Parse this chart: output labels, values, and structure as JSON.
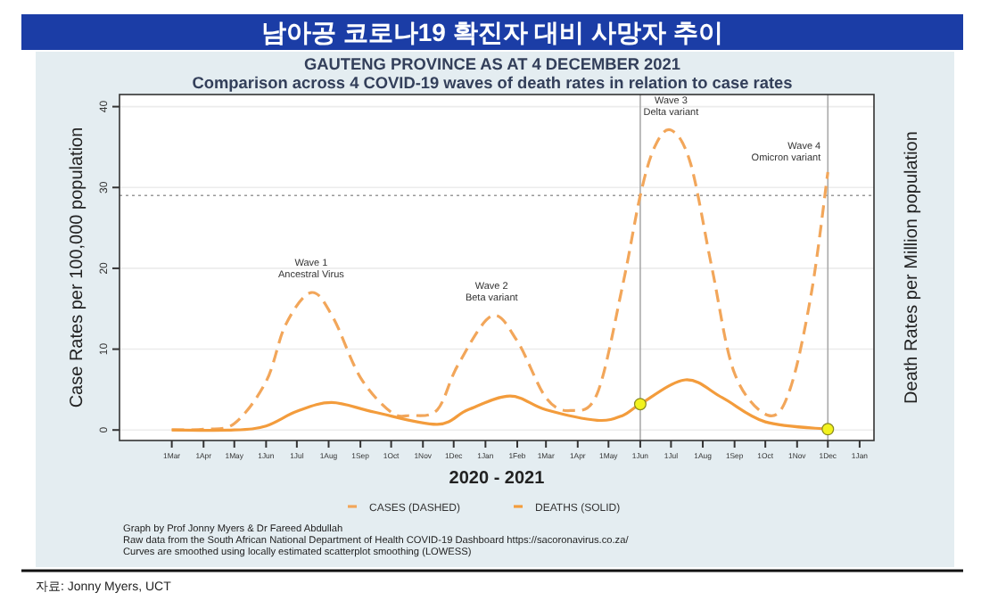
{
  "chart_data": {
    "type": "line",
    "title": "남아공 코로나19 확진자 대비 사망자 추이",
    "subtitle": "GAUTENG PROVINCE AS AT 4 DECEMBER 2021\nComparison across 4 COVID-19 waves of death rates in relation to case rates",
    "xlabel": "2020 - 2021",
    "ylabel": "Case Rates per 100,000 population",
    "y2label": "Death Rates per Million population",
    "xlim": [
      "2020-01-10",
      "2022-01-15"
    ],
    "xticks": [
      {
        "value": "2020-03-01",
        "label": "1Mar"
      },
      {
        "value": "2020-04-01",
        "label": "1Apr"
      },
      {
        "value": "2020-05-01",
        "label": "1May"
      },
      {
        "value": "2020-06-01",
        "label": "1Jun"
      },
      {
        "value": "2020-07-01",
        "label": "1Jul"
      },
      {
        "value": "2020-08-01",
        "label": "1Aug"
      },
      {
        "value": "2020-09-01",
        "label": "1Sep"
      },
      {
        "value": "2020-10-01",
        "label": "1Oct"
      },
      {
        "value": "2020-11-01",
        "label": "1Nov"
      },
      {
        "value": "2020-12-01",
        "label": "1Dec"
      },
      {
        "value": "2021-01-01",
        "label": "1Jan"
      },
      {
        "value": "2021-02-01",
        "label": "1Feb"
      },
      {
        "value": "2021-03-01",
        "label": "1Mar"
      },
      {
        "value": "2021-04-01",
        "label": "1Apr"
      },
      {
        "value": "2021-05-01",
        "label": "1May"
      },
      {
        "value": "2021-06-01",
        "label": "1Jun"
      },
      {
        "value": "2021-07-01",
        "label": "1Jul"
      },
      {
        "value": "2021-08-01",
        "label": "1Aug"
      },
      {
        "value": "2021-09-01",
        "label": "1Sep"
      },
      {
        "value": "2021-10-01",
        "label": "1Oct"
      },
      {
        "value": "2021-11-01",
        "label": "1Nov"
      },
      {
        "value": "2021-12-01",
        "label": "1Dec"
      },
      {
        "value": "2022-01-01",
        "label": "1Jan"
      }
    ],
    "ylim": [
      -1.3,
      41.5
    ],
    "yticks": [
      0,
      10,
      20,
      30,
      40
    ],
    "grid": "y",
    "legend": "bottom",
    "series": [
      {
        "name": "CASES (DASHED)",
        "color": "#f2a65a",
        "line_style": "dashed",
        "x": [
          "2020-03-01",
          "2020-04-01",
          "2020-05-01",
          "2020-06-01",
          "2020-06-20",
          "2020-07-15",
          "2020-08-05",
          "2020-09-01",
          "2020-10-01",
          "2020-10-20",
          "2020-11-15",
          "2020-12-05",
          "2021-01-07",
          "2021-02-01",
          "2021-03-01",
          "2021-03-25",
          "2021-04-20",
          "2021-05-15",
          "2021-06-01",
          "2021-06-15",
          "2021-07-01",
          "2021-07-20",
          "2021-08-10",
          "2021-09-01",
          "2021-10-04",
          "2021-10-25",
          "2021-11-15",
          "2021-12-01"
        ],
        "values": [
          0,
          0.1,
          0.8,
          6,
          13,
          17,
          14,
          6.5,
          2.2,
          1.8,
          2.5,
          8,
          14.1,
          11,
          4,
          2.4,
          4.5,
          18,
          29,
          35,
          37.1,
          33,
          20,
          7,
          1.8,
          5,
          17,
          31.9
        ]
      },
      {
        "name": "DEATHS (SOLID)",
        "color": "#f39c3c",
        "line_style": "solid",
        "x": [
          "2020-03-01",
          "2020-05-01",
          "2020-06-01",
          "2020-07-01",
          "2020-08-04",
          "2020-09-15",
          "2020-11-15",
          "2020-12-15",
          "2021-01-25",
          "2021-03-01",
          "2021-04-20",
          "2021-05-15",
          "2021-06-01",
          "2021-07-15",
          "2021-08-20",
          "2021-10-01",
          "2021-12-01"
        ],
        "values": [
          0,
          0,
          0.5,
          2.3,
          3.4,
          2.2,
          0.7,
          2.5,
          4.2,
          2.5,
          1.2,
          1.8,
          3.2,
          6.2,
          4,
          1,
          0.1
        ]
      },
      {
        "type": "scatter",
        "color": "#f2f21e",
        "marker": "circle",
        "x": [
          "2021-06-01",
          "2021-12-01"
        ],
        "values": [
          3.2,
          0.1
        ]
      }
    ],
    "ref_lines": [
      {
        "axis": "y",
        "value": 29,
        "color": "#999999",
        "line_style": "dotted"
      },
      {
        "axis": "x",
        "value": "2021-06-01",
        "color": "#aaaaaa",
        "line_style": "solid"
      },
      {
        "axis": "x",
        "value": "2021-12-01",
        "color": "#aaaaaa",
        "line_style": "solid"
      }
    ],
    "annotations": [
      "Wave 1\nAncestral Virus",
      "Wave 2\nBeta  variant",
      "Wave 3\nDelta  variant",
      "Wave 4\nOmicron  variant",
      "Graph by Prof Jonny Myers & Dr Fareed Abdullah",
      "Raw data from the South African National Department of Health COVID-19 Dashboard  https://sacoronavirus.co.za/",
      "Curves are smoothed using locally estimated scatterplot smoothing (LOWESS)",
      "자료: Jonny Myers, UCT"
    ]
  }
}
